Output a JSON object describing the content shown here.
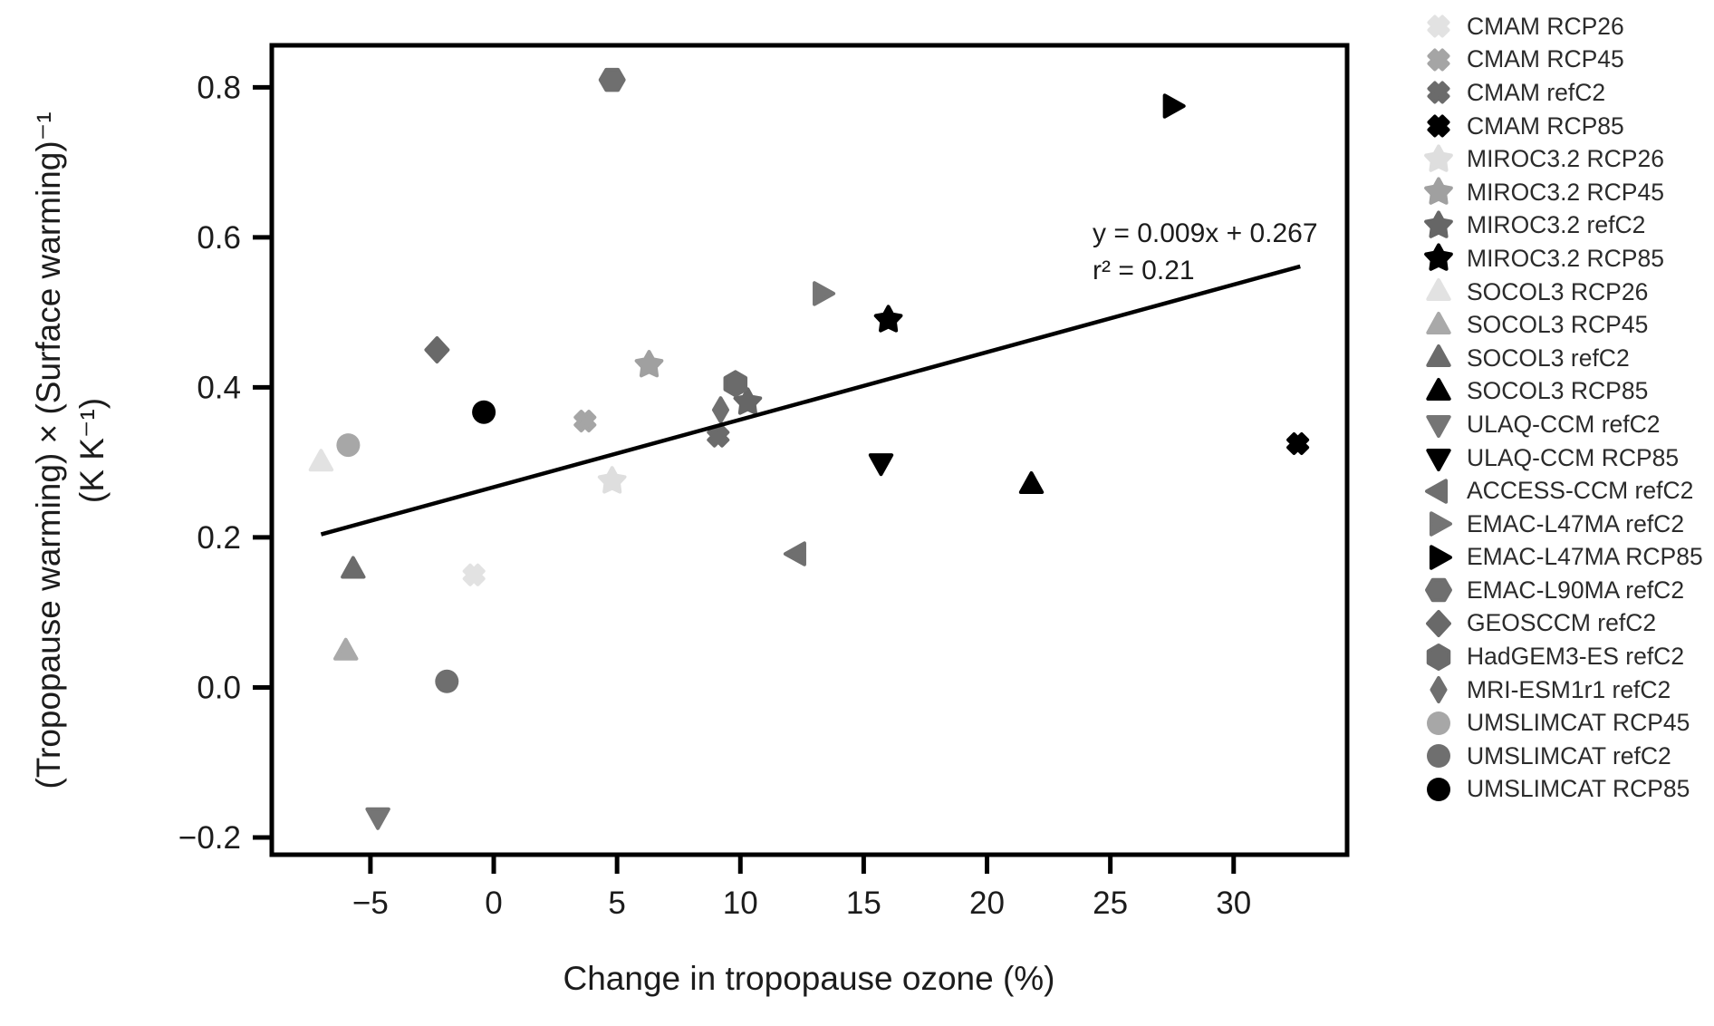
{
  "chart_data": {
    "type": "scatter",
    "title": "",
    "xlabel": "Change in tropopause ozone (%)",
    "ylabel_line1": "(Tropopause warming) × (Surface warming)⁻¹",
    "ylabel_line2": "(K K⁻¹)",
    "xlim": [
      -9.0,
      34.6
    ],
    "ylim": [
      -0.223,
      0.856
    ],
    "xticks": [
      -5,
      0,
      5,
      10,
      15,
      20,
      25,
      30
    ],
    "xtick_labels": [
      "−5",
      "0",
      "5",
      "10",
      "15",
      "20",
      "25",
      "30"
    ],
    "yticks": [
      0.8,
      0.6,
      0.4,
      0.2,
      0.0,
      -0.2
    ],
    "ytick_labels": [
      "0.8",
      "0.6",
      "0.4",
      "0.2",
      "0.0",
      "−0.2"
    ],
    "grid": false,
    "legend_position": "right-outside",
    "scenario_palette": {
      "RCP26": "#e2e2e2",
      "RCP45": "#a5a5a5",
      "refC2": "#6b6b6b",
      "RCP85": "#000000"
    },
    "series": [
      {
        "name": "CMAM RCP26",
        "marker": "x-filled",
        "color": "#e2e2e2",
        "x": -0.8,
        "y": 0.15
      },
      {
        "name": "CMAM RCP45",
        "marker": "x-filled",
        "color": "#a5a5a5",
        "x": 3.7,
        "y": 0.355
      },
      {
        "name": "CMAM refC2",
        "marker": "x-filled",
        "color": "#6b6b6b",
        "x": 9.1,
        "y": 0.335
      },
      {
        "name": "CMAM RCP85",
        "marker": "x-filled",
        "color": "#000000",
        "x": 32.6,
        "y": 0.325
      },
      {
        "name": "MIROC3.2 RCP26",
        "marker": "star",
        "color": "#dedede",
        "x": 4.8,
        "y": 0.275
      },
      {
        "name": "MIROC3.2 RCP45",
        "marker": "star",
        "color": "#a0a0a0",
        "x": 6.3,
        "y": 0.43
      },
      {
        "name": "MIROC3.2 refC2",
        "marker": "star",
        "color": "#666666",
        "x": 10.3,
        "y": 0.38
      },
      {
        "name": "MIROC3.2 RCP85",
        "marker": "star",
        "color": "#000000",
        "x": 16.0,
        "y": 0.49
      },
      {
        "name": "SOCOL3 RCP26",
        "marker": "triangle-up",
        "color": "#e2e2e2",
        "x": -7.0,
        "y": 0.3
      },
      {
        "name": "SOCOL3 RCP45",
        "marker": "triangle-up",
        "color": "#a9a9a9",
        "x": -6.0,
        "y": 0.048
      },
      {
        "name": "SOCOL3 refC2",
        "marker": "triangle-up",
        "color": "#6b6b6b",
        "x": -5.7,
        "y": 0.157
      },
      {
        "name": "SOCOL3 RCP85",
        "marker": "triangle-up",
        "color": "#000000",
        "x": 21.8,
        "y": 0.27
      },
      {
        "name": "ULAQ-CCM refC2",
        "marker": "triangle-down",
        "color": "#757575",
        "x": -4.7,
        "y": -0.172
      },
      {
        "name": "ULAQ-CCM RCP85",
        "marker": "triangle-down",
        "color": "#000000",
        "x": 15.7,
        "y": 0.3
      },
      {
        "name": "ACCESS-CCM refC2",
        "marker": "triangle-left",
        "color": "#6f6f6f",
        "x": 12.3,
        "y": 0.178
      },
      {
        "name": "EMAC-L47MA refC2",
        "marker": "triangle-right",
        "color": "#757575",
        "x": 13.3,
        "y": 0.525
      },
      {
        "name": "EMAC-L47MA RCP85",
        "marker": "triangle-right",
        "color": "#000000",
        "x": 27.5,
        "y": 0.775
      },
      {
        "name": "EMAC-L90MA refC2",
        "marker": "hexagon-flat",
        "color": "#6f6f6f",
        "x": 4.8,
        "y": 0.81
      },
      {
        "name": "GEOSCCM refC2",
        "marker": "diamond",
        "color": "#696969",
        "x": -2.3,
        "y": 0.45
      },
      {
        "name": "HadGEM3-ES refC2",
        "marker": "hexagon",
        "color": "#6b6b6b",
        "x": 9.8,
        "y": 0.405
      },
      {
        "name": "MRI-ESM1r1 refC2",
        "marker": "thin-diamond",
        "color": "#6f6f6f",
        "x": 9.2,
        "y": 0.37
      },
      {
        "name": "UMSLIMCAT RCP45",
        "marker": "circle",
        "color": "#a7a7a7",
        "x": -5.9,
        "y": 0.323
      },
      {
        "name": "UMSLIMCAT refC2",
        "marker": "circle",
        "color": "#6f6f6f",
        "x": -1.9,
        "y": 0.008
      },
      {
        "name": "UMSLIMCAT RCP85",
        "marker": "circle",
        "color": "#000000",
        "x": -0.4,
        "y": 0.367
      }
    ],
    "regression": {
      "equation": "y = 0.009x + 0.267",
      "r2_label": "r² = 0.21",
      "slope": 0.009,
      "intercept": 0.267,
      "r_squared": 0.21,
      "x_start": -7.0,
      "x_end": 32.7,
      "color": "#000000"
    }
  }
}
